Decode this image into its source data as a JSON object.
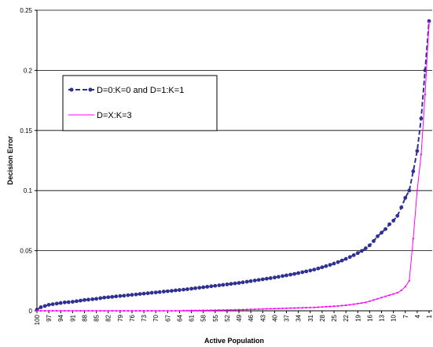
{
  "chart_data": {
    "type": "line",
    "title": "",
    "xlabel": "Active Population",
    "ylabel": "Decision Error",
    "x": [
      100,
      99,
      98,
      97,
      96,
      95,
      94,
      93,
      92,
      91,
      90,
      89,
      88,
      87,
      86,
      85,
      84,
      83,
      82,
      81,
      80,
      79,
      78,
      77,
      76,
      75,
      74,
      73,
      72,
      71,
      70,
      69,
      68,
      67,
      66,
      65,
      64,
      63,
      62,
      61,
      60,
      59,
      58,
      57,
      56,
      55,
      54,
      53,
      52,
      51,
      50,
      49,
      48,
      47,
      46,
      45,
      44,
      43,
      42,
      41,
      40,
      39,
      38,
      37,
      36,
      35,
      34,
      33,
      32,
      31,
      30,
      29,
      28,
      27,
      26,
      25,
      24,
      23,
      22,
      21,
      20,
      19,
      18,
      17,
      16,
      15,
      14,
      13,
      12,
      11,
      10,
      9,
      8,
      7,
      6,
      5,
      4,
      3,
      2,
      1
    ],
    "xticks": [
      "100",
      "97",
      "94",
      "91",
      "88",
      "85",
      "82",
      "79",
      "76",
      "73",
      "70",
      "67",
      "64",
      "61",
      "58",
      "55",
      "52",
      "49",
      "46",
      "43",
      "40",
      "37",
      "34",
      "31",
      "28",
      "25",
      "22",
      "19",
      "16",
      "13",
      "10",
      "7",
      "4",
      "1"
    ],
    "ylim": [
      0,
      0.25
    ],
    "yticks": [
      "0",
      "0.05",
      "0.1",
      "0.15",
      "0.2",
      "0.25"
    ],
    "grid": true,
    "legend_position": "upper-left",
    "series": [
      {
        "name": "D=0:K=0 and D=1:K=1",
        "color": "#2e3192",
        "marker": "circle",
        "dash": "dashed",
        "values": [
          0.001,
          0.003,
          0.004,
          0.005,
          0.0055,
          0.006,
          0.0065,
          0.007,
          0.0072,
          0.0075,
          0.008,
          0.0085,
          0.009,
          0.0093,
          0.0096,
          0.01,
          0.0105,
          0.011,
          0.0113,
          0.0116,
          0.012,
          0.0123,
          0.0126,
          0.013,
          0.0133,
          0.0136,
          0.014,
          0.0143,
          0.0146,
          0.015,
          0.0153,
          0.0156,
          0.016,
          0.0163,
          0.0166,
          0.017,
          0.0173,
          0.0176,
          0.018,
          0.0184,
          0.0188,
          0.0192,
          0.0196,
          0.02,
          0.0204,
          0.0208,
          0.0212,
          0.0216,
          0.022,
          0.0224,
          0.0228,
          0.0232,
          0.0237,
          0.0242,
          0.0247,
          0.0252,
          0.0257,
          0.0262,
          0.0267,
          0.0272,
          0.0277,
          0.0283,
          0.0289,
          0.0295,
          0.0301,
          0.0307,
          0.0314,
          0.0321,
          0.0328,
          0.0335,
          0.0343,
          0.0352,
          0.0362,
          0.0372,
          0.0382,
          0.0393,
          0.0405,
          0.0418,
          0.0432,
          0.0447,
          0.0463,
          0.048,
          0.0498,
          0.052,
          0.0545,
          0.058,
          0.062,
          0.065,
          0.068,
          0.072,
          0.075,
          0.079,
          0.086,
          0.094,
          0.1,
          0.116,
          0.133,
          0.16,
          0.2,
          0.241
        ]
      },
      {
        "name": "D=X:K=3",
        "color": "#ff00ff",
        "marker": "small",
        "dash": "solid",
        "values": [
          0,
          0,
          0,
          0,
          0,
          0,
          0,
          0,
          0,
          0,
          0,
          0,
          0,
          0,
          0,
          0,
          0,
          0,
          0,
          0,
          0,
          0,
          0,
          0,
          0,
          0,
          0,
          0,
          0,
          0,
          0,
          0,
          0,
          0,
          0,
          0,
          0,
          0.0002,
          0.0002,
          0.0003,
          0.0003,
          0.0003,
          0.0004,
          0.0004,
          0.0005,
          0.0005,
          0.0006,
          0.0006,
          0.0007,
          0.0007,
          0.0008,
          0.0009,
          0.001,
          0.0011,
          0.0012,
          0.0013,
          0.0014,
          0.0015,
          0.0016,
          0.0017,
          0.0018,
          0.0019,
          0.002,
          0.0021,
          0.0022,
          0.0023,
          0.0024,
          0.0025,
          0.0026,
          0.0027,
          0.0028,
          0.003,
          0.0032,
          0.0034,
          0.0036,
          0.0038,
          0.004,
          0.0043,
          0.0046,
          0.005,
          0.0055,
          0.006,
          0.0065,
          0.007,
          0.008,
          0.009,
          0.01,
          0.011,
          0.012,
          0.013,
          0.014,
          0.015,
          0.017,
          0.02,
          0.025,
          0.06,
          0.1,
          0.13,
          0.18,
          0.24
        ]
      }
    ]
  }
}
